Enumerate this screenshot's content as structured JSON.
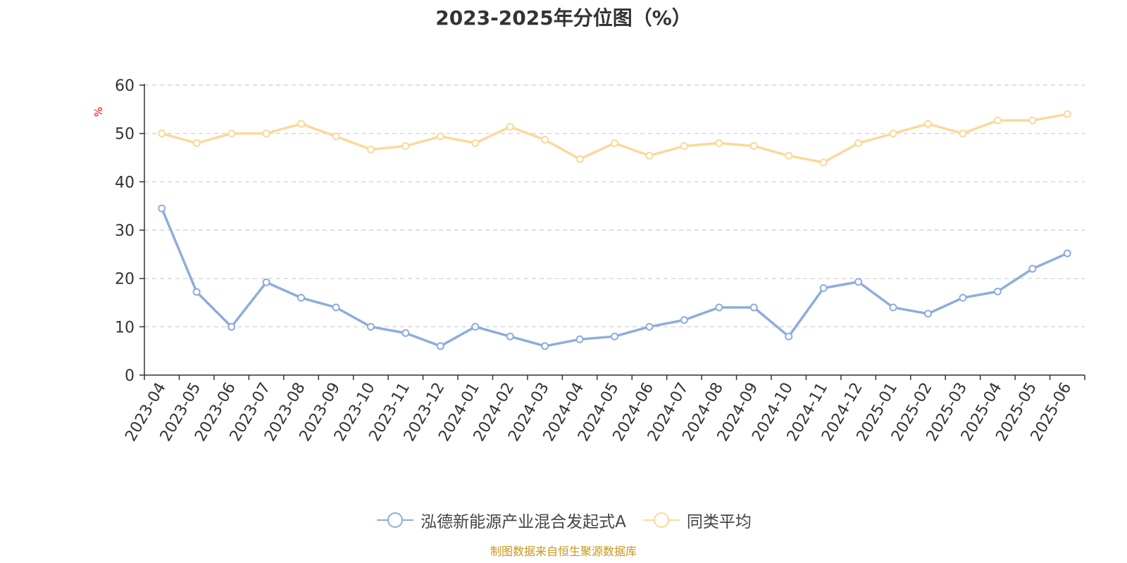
{
  "title": "2023-2025年分位图（%）",
  "source_note": "制图数据来自恒生聚源数据库",
  "colors": {
    "fund": "#8eacdc",
    "average": "#fad99a",
    "grid": "#cccccc",
    "axis": "#333333",
    "unit_label": "#ff0000",
    "source_note": "#c8961e",
    "title": "#333333"
  },
  "chart_data": {
    "type": "line",
    "title": "2023-2025年分位图（%）",
    "ylabel": "%",
    "xlabel": "",
    "ylim": [
      0,
      60
    ],
    "yticks": [
      0,
      10,
      20,
      30,
      40,
      50,
      60
    ],
    "grid": true,
    "legend_position": "bottom",
    "categories": [
      "2023-04",
      "2023-05",
      "2023-06",
      "2023-07",
      "2023-08",
      "2023-09",
      "2023-10",
      "2023-11",
      "2023-12",
      "2024-01",
      "2024-02",
      "2024-03",
      "2024-04",
      "2024-05",
      "2024-06",
      "2024-07",
      "2024-08",
      "2024-09",
      "2024-10",
      "2024-11",
      "2024-12",
      "2025-01",
      "2025-02",
      "2025-03",
      "2025-04",
      "2025-05",
      "2025-06"
    ],
    "series": [
      {
        "name": "泓德新能源产业混合发起式A",
        "color": "#8eacdc",
        "values": [
          34.5,
          17.2,
          10.0,
          19.2,
          16.0,
          14.0,
          10.0,
          8.7,
          6.0,
          10.0,
          8.0,
          6.0,
          7.4,
          8.0,
          10.0,
          11.4,
          14.0,
          14.0,
          8.0,
          18.0,
          19.3,
          14.0,
          12.7,
          16.0,
          17.3,
          22.0,
          25.2
        ]
      },
      {
        "name": "同类平均",
        "color": "#fad99a",
        "values": [
          50.0,
          48.0,
          50.0,
          50.0,
          52.0,
          49.4,
          46.7,
          47.4,
          49.4,
          48.0,
          51.4,
          48.7,
          44.7,
          48.0,
          45.4,
          47.4,
          48.0,
          47.4,
          45.4,
          44.0,
          48.0,
          50.0,
          52.0,
          50.0,
          52.7,
          52.7,
          54.0
        ]
      }
    ]
  }
}
